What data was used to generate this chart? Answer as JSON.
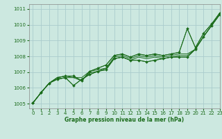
{
  "title": "Graphe pression niveau de la mer (hPa)",
  "background_color": "#cce8e0",
  "grid_color": "#aacccc",
  "line_color": "#1a6b1a",
  "xlim": [
    -0.5,
    23
  ],
  "ylim": [
    1004.7,
    1011.3
  ],
  "yticks": [
    1005,
    1006,
    1007,
    1008,
    1009,
    1010,
    1011
  ],
  "xticks": [
    0,
    1,
    2,
    3,
    4,
    5,
    6,
    7,
    8,
    9,
    10,
    11,
    12,
    13,
    14,
    15,
    16,
    17,
    18,
    19,
    20,
    21,
    22,
    23
  ],
  "series": [
    [
      1005.05,
      1005.7,
      1006.3,
      1006.55,
      1006.65,
      1006.65,
      1006.45,
      1006.95,
      1007.05,
      1007.25,
      1007.85,
      1007.95,
      1007.75,
      1007.95,
      1007.85,
      1007.95,
      1007.85,
      1007.95,
      1008.05,
      1008.05,
      1008.45,
      1009.25,
      1009.95,
      1010.65
    ],
    [
      1005.05,
      1005.7,
      1006.3,
      1006.55,
      1006.65,
      1006.15,
      1006.55,
      1006.85,
      1007.05,
      1007.15,
      1007.85,
      1007.95,
      1007.75,
      1007.75,
      1007.65,
      1007.75,
      1007.85,
      1007.95,
      1007.95,
      1007.95,
      1008.45,
      1009.25,
      1009.95,
      1010.65
    ],
    [
      1005.05,
      1005.7,
      1006.3,
      1006.65,
      1006.75,
      1006.65,
      1006.65,
      1007.05,
      1007.15,
      1007.25,
      1007.95,
      1008.05,
      1007.85,
      1008.05,
      1007.95,
      1008.05,
      1007.95,
      1008.05,
      1008.15,
      1008.15,
      1008.45,
      1009.25,
      1009.95,
      1010.65
    ],
    [
      1005.05,
      1005.7,
      1006.3,
      1006.65,
      1006.75,
      1006.75,
      1006.45,
      1007.05,
      1007.25,
      1007.45,
      1008.05,
      1008.15,
      1007.95,
      1008.15,
      1008.05,
      1008.15,
      1008.05,
      1008.15,
      1008.25,
      1009.75,
      1008.55,
      1009.45,
      1010.05,
      1010.75
    ]
  ],
  "upper_line": [
    1005.05,
    1005.7,
    1006.3,
    1006.65,
    1006.75,
    1006.75,
    1006.45,
    1007.05,
    1007.25,
    1007.45,
    1008.05,
    1008.15,
    1007.95,
    1008.15,
    1008.05,
    1008.15,
    1008.05,
    1008.15,
    1008.25,
    1009.75,
    1008.55,
    1009.45,
    1010.05,
    1010.75
  ],
  "lower_line": [
    1005.05,
    1005.7,
    1006.3,
    1006.55,
    1006.65,
    1006.15,
    1006.55,
    1006.85,
    1007.05,
    1007.15,
    1007.85,
    1007.95,
    1007.75,
    1007.75,
    1007.65,
    1007.75,
    1007.85,
    1007.95,
    1007.95,
    1007.95,
    1008.45,
    1009.25,
    1009.95,
    1010.65
  ]
}
